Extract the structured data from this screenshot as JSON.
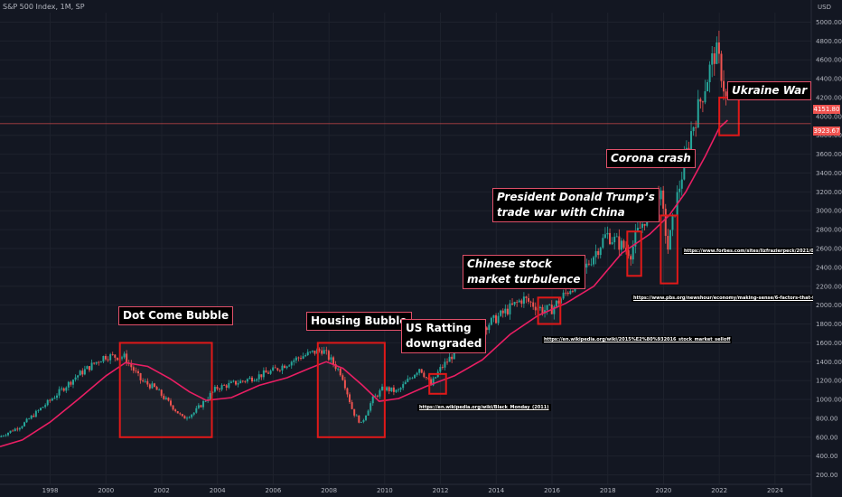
{
  "header": {
    "title": "S&P 500 Index, 1M, SP",
    "currency": "USD"
  },
  "colors": {
    "background": "#131722",
    "up": "#26a69a",
    "down": "#ef5350",
    "ma": "#e91e63",
    "box": "#e01919",
    "grid": "#1e222d",
    "axis_text": "#b2b5be"
  },
  "price_tags": {
    "last": "4151.80",
    "hline": "3923.67"
  },
  "chart_data": {
    "type": "candlestick",
    "x_axis": {
      "range": [
        1996.2,
        2025.3
      ],
      "ticks": [
        "1998",
        "2000",
        "2002",
        "2004",
        "2006",
        "2008",
        "2010",
        "2012",
        "2014",
        "2016",
        "2018",
        "2020",
        "2022",
        "2024"
      ]
    },
    "y_axis": {
      "range": [
        100,
        5100
      ],
      "ticks": [
        "5000.00",
        "4800.00",
        "4600.00",
        "4400.00",
        "4200.00",
        "4000.00",
        "3800.00",
        "3600.00",
        "3400.00",
        "3200.00",
        "3000.00",
        "2800.00",
        "2600.00",
        "2400.00",
        "2200.00",
        "2000.00",
        "1800.00",
        "1600.00",
        "1400.00",
        "1200.00",
        "1000.00",
        "800.00",
        "600.00",
        "400.00",
        "200.00"
      ]
    },
    "price_path": [
      [
        1996.2,
        600
      ],
      [
        1997.0,
        720
      ],
      [
        1998.0,
        980
      ],
      [
        1999.0,
        1250
      ],
      [
        2000.0,
        1460
      ],
      [
        2000.7,
        1450
      ],
      [
        2001.3,
        1200
      ],
      [
        2001.8,
        1120
      ],
      [
        2002.5,
        900
      ],
      [
        2002.8,
        800
      ],
      [
        2003.2,
        860
      ],
      [
        2004.0,
        1120
      ],
      [
        2005.0,
        1200
      ],
      [
        2006.0,
        1300
      ],
      [
        2007.0,
        1450
      ],
      [
        2007.8,
        1530
      ],
      [
        2008.5,
        1270
      ],
      [
        2008.9,
        870
      ],
      [
        2009.2,
        740
      ],
      [
        2009.6,
        1000
      ],
      [
        2010.0,
        1120
      ],
      [
        2010.5,
        1080
      ],
      [
        2011.3,
        1340
      ],
      [
        2011.7,
        1150
      ],
      [
        2012.0,
        1310
      ],
      [
        2013.0,
        1650
      ],
      [
        2014.0,
        1850
      ],
      [
        2015.0,
        2070
      ],
      [
        2015.7,
        1950
      ],
      [
        2016.0,
        1950
      ],
      [
        2017.0,
        2280
      ],
      [
        2018.0,
        2750
      ],
      [
        2018.9,
        2550
      ],
      [
        2019.0,
        2700
      ],
      [
        2019.9,
        3230
      ],
      [
        2020.2,
        2600
      ],
      [
        2020.5,
        3100
      ],
      [
        2021.0,
        3800
      ],
      [
        2021.9,
        4700
      ],
      [
        2022.1,
        4500
      ],
      [
        2022.3,
        4151.8
      ]
    ],
    "moving_average": [
      [
        1996.2,
        500
      ],
      [
        1997.0,
        570
      ],
      [
        1998.0,
        760
      ],
      [
        1999.0,
        1000
      ],
      [
        2000.0,
        1250
      ],
      [
        2000.7,
        1390
      ],
      [
        2001.5,
        1350
      ],
      [
        2002.3,
        1220
      ],
      [
        2003.0,
        1080
      ],
      [
        2003.6,
        990
      ],
      [
        2004.5,
        1020
      ],
      [
        2005.5,
        1150
      ],
      [
        2006.5,
        1230
      ],
      [
        2007.3,
        1330
      ],
      [
        2007.9,
        1400
      ],
      [
        2008.5,
        1330
      ],
      [
        2009.2,
        1150
      ],
      [
        2009.8,
        980
      ],
      [
        2010.5,
        1010
      ],
      [
        2011.5,
        1140
      ],
      [
        2012.5,
        1250
      ],
      [
        2013.5,
        1420
      ],
      [
        2014.5,
        1690
      ],
      [
        2015.5,
        1890
      ],
      [
        2016.5,
        2020
      ],
      [
        2017.5,
        2200
      ],
      [
        2018.5,
        2550
      ],
      [
        2019.5,
        2750
      ],
      [
        2020.2,
        2950
      ],
      [
        2020.8,
        3200
      ],
      [
        2021.5,
        3580
      ],
      [
        2022.0,
        3880
      ],
      [
        2022.3,
        3960
      ]
    ],
    "hline": 3923.67,
    "boxes": [
      {
        "name": "dotcom",
        "x": [
          2000.5,
          2003.8
        ],
        "y": [
          600,
          1600
        ]
      },
      {
        "name": "housing",
        "x": [
          2007.6,
          2010.0
        ],
        "y": [
          600,
          1600
        ]
      },
      {
        "name": "us-rating",
        "x": [
          2011.6,
          2012.2
        ],
        "y": [
          1060,
          1270
        ]
      },
      {
        "name": "china",
        "x": [
          2015.5,
          2016.3
        ],
        "y": [
          1800,
          2080
        ]
      },
      {
        "name": "trade-war",
        "x": [
          2018.7,
          2019.2
        ],
        "y": [
          2310,
          2780
        ]
      },
      {
        "name": "corona",
        "x": [
          2019.9,
          2020.5
        ],
        "y": [
          2230,
          2950
        ]
      },
      {
        "name": "ukraine",
        "x": [
          2022.0,
          2022.7
        ],
        "y": [
          3800,
          4200
        ]
      }
    ],
    "annotations": [
      {
        "text": "Dot Come Bubble"
      },
      {
        "text": "Housing Bubble"
      },
      {
        "text": "US Ratting\ndowngraded"
      },
      {
        "text": "Chinese stock\nmarket turbulence"
      },
      {
        "text": "President Donald Trump’s\ntrade war with China"
      },
      {
        "text": "Corona crash"
      },
      {
        "text": "Ukraine War"
      }
    ],
    "links": [
      "https://en.wikipedia.org/wiki/Black_Monday_(2011)",
      "https://en.wikipedia.org/wiki/2015%E2%80%932016_stock_market_selloff",
      "https://www.pbs.org/newshour/economy/making-sense/6-factors-that-fueled-the-s",
      "https://www.forbes.com/sites/lizfrazierpeck/2021/02/11/t"
    ]
  }
}
